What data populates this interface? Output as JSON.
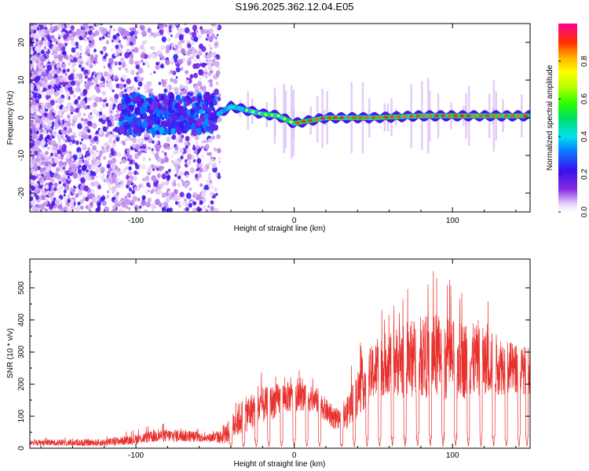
{
  "title": "S196.2025.362.12.04.E05",
  "chart_data": [
    {
      "type": "heatmap",
      "name": "spectrogram",
      "xlabel": "Height of straight line (km)",
      "ylabel": "Frequency (Hz)",
      "xlim": [
        -167,
        149
      ],
      "ylim": [
        -25,
        25
      ],
      "xticks": [
        -100,
        0,
        100
      ],
      "xtick_labels": [
        "-100",
        "0",
        "100"
      ],
      "yticks": [
        -20,
        -10,
        0,
        10,
        20
      ],
      "ytick_labels": [
        "-20",
        "-10",
        "0",
        "10",
        "20"
      ],
      "colorbar": {
        "label": "Normalized spectral amplitude",
        "range": [
          0,
          1
        ],
        "ticks": [
          0.0,
          0.2,
          0.4,
          0.6,
          0.8
        ],
        "tick_labels": [
          "0.0",
          "0.2",
          "0.4",
          "0.6",
          "0.8"
        ],
        "colormap": "rainbow (violet-blue-cyan-green-yellow-orange-red-magenta)"
      },
      "ridge": {
        "description": "narrow band centered near 0 Hz",
        "x": [
          -50,
          -40,
          -30,
          -20,
          -10,
          0,
          20,
          50,
          80,
          100,
          130,
          149
        ],
        "freq_hz": [
          0.5,
          3.0,
          2.0,
          1.0,
          0.5,
          -1.5,
          0.0,
          0.0,
          0.5,
          0.5,
          0.5,
          0.5
        ]
      }
    },
    {
      "type": "line",
      "name": "snr",
      "color": "#e8312d",
      "xlabel": "Height of straight line (km)",
      "ylabel": "SNR (10 * v/v)",
      "xlim": [
        -167,
        149
      ],
      "ylim": [
        0,
        590
      ],
      "xticks": [
        -100,
        0,
        100
      ],
      "xtick_labels": [
        "-100",
        "0",
        "100"
      ],
      "yticks": [
        0,
        100,
        200,
        300,
        400,
        500
      ],
      "ytick_labels": [
        "0",
        "100",
        "200",
        "300",
        "400",
        "500"
      ],
      "envelope": {
        "x": [
          -167,
          -120,
          -100,
          -85,
          -70,
          -55,
          -45,
          -40,
          -35,
          -25,
          -15,
          -5,
          5,
          15,
          22,
          30,
          40,
          50,
          60,
          70,
          80,
          90,
          100,
          110,
          120,
          130,
          140,
          149
        ],
        "base": [
          15,
          15,
          25,
          35,
          35,
          30,
          30,
          50,
          80,
          110,
          130,
          150,
          150,
          140,
          100,
          70,
          160,
          220,
          250,
          250,
          260,
          260,
          250,
          250,
          250,
          240,
          230,
          230
        ],
        "peak": [
          35,
          40,
          60,
          80,
          80,
          60,
          80,
          140,
          200,
          240,
          250,
          260,
          240,
          230,
          180,
          150,
          330,
          420,
          470,
          520,
          540,
          560,
          530,
          520,
          480,
          450,
          400,
          400
        ]
      },
      "dropouts_x": [
        -40,
        -32,
        -24,
        -16,
        -8,
        0,
        8,
        16,
        30,
        38,
        46,
        54,
        62,
        70,
        78,
        86,
        94,
        102,
        110,
        118,
        126,
        134,
        142,
        147
      ]
    }
  ]
}
